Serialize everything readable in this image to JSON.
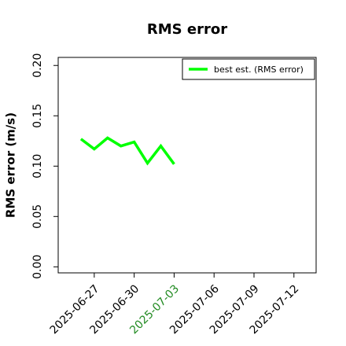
{
  "chart_data": {
    "type": "line",
    "title": "RMS error",
    "y_label": "RMS error (m/s)",
    "x": [
      "2025-06-26",
      "2025-06-27",
      "2025-06-28",
      "2025-06-29",
      "2025-06-30",
      "2025-07-01",
      "2025-07-02",
      "2025-07-03"
    ],
    "series": [
      {
        "name": "best est. (RMS error)",
        "color": "#00ff00",
        "values": [
          0.127,
          0.117,
          0.128,
          0.12,
          0.124,
          0.103,
          0.12,
          0.102
        ]
      }
    ],
    "xlim": [
      "2025-06-24T07:00",
      "2025-07-13T16:00"
    ],
    "xticks": [
      "2025-06-27",
      "2025-06-30",
      "2025-07-03",
      "2025-07-06",
      "2025-07-09",
      "2025-07-12"
    ],
    "xtick_colors": [
      "#000000",
      "#000000",
      "#228b22",
      "#000000",
      "#000000",
      "#000000"
    ],
    "ylim": [
      -0.006,
      0.208
    ],
    "yticks": [
      {
        "value": 0,
        "label": "0.00"
      },
      {
        "value": 0.05,
        "label": "0.05"
      },
      {
        "value": 0.1,
        "label": "0.10"
      },
      {
        "value": 0.15,
        "label": "0.15"
      },
      {
        "value": 0.2,
        "label": "0.20"
      }
    ],
    "legend": "upper right",
    "grid": false
  }
}
